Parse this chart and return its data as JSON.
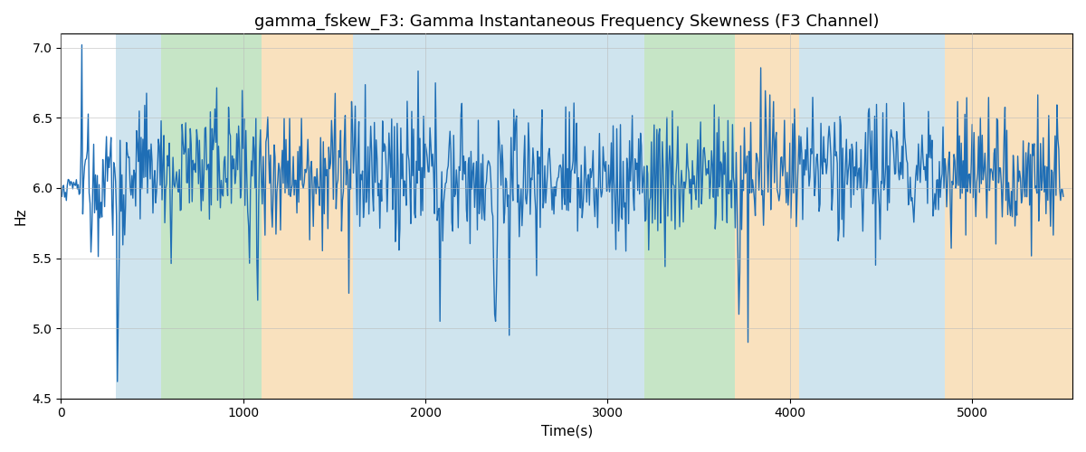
{
  "title": "gamma_fskew_F3: Gamma Instantaneous Frequency Skewness (F3 Channel)",
  "xlabel": "Time(s)",
  "ylabel": "Hz",
  "ylim": [
    4.5,
    7.1
  ],
  "xlim": [
    0,
    5550
  ],
  "line_color": "#1f6eb5",
  "line_width": 1.0,
  "background_color": "#ffffff",
  "grid_color": "#bbbbbb",
  "colored_bands": [
    {
      "xmin": 300,
      "xmax": 550,
      "color": "#a8cfe0",
      "alpha": 0.55
    },
    {
      "xmin": 550,
      "xmax": 1100,
      "color": "#98d098",
      "alpha": 0.55
    },
    {
      "xmin": 1100,
      "xmax": 1600,
      "color": "#f5c98a",
      "alpha": 0.55
    },
    {
      "xmin": 1600,
      "xmax": 3050,
      "color": "#a8cfe0",
      "alpha": 0.55
    },
    {
      "xmin": 3050,
      "xmax": 3200,
      "color": "#a8cfe0",
      "alpha": 0.55
    },
    {
      "xmin": 3200,
      "xmax": 3700,
      "color": "#98d098",
      "alpha": 0.55
    },
    {
      "xmin": 3700,
      "xmax": 4050,
      "color": "#f5c98a",
      "alpha": 0.55
    },
    {
      "xmin": 4050,
      "xmax": 4850,
      "color": "#a8cfe0",
      "alpha": 0.55
    },
    {
      "xmin": 4850,
      "xmax": 5550,
      "color": "#f5c98a",
      "alpha": 0.55
    }
  ],
  "yticks": [
    4.5,
    5.0,
    5.5,
    6.0,
    6.5,
    7.0
  ],
  "seed": 12345,
  "num_points": 1100,
  "time_start": 5,
  "time_end": 5500
}
